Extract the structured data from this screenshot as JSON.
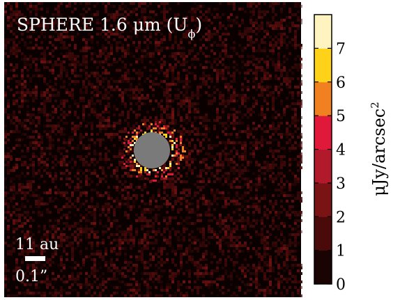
{
  "figure": {
    "title": "SPHERE 1.6 μm (U",
    "title_sub": "ϕ",
    "title_close": ")",
    "scalebar_distance": "11 au",
    "scalebar_angle": "0.1”"
  },
  "colorbar": {
    "label": "μJy/arcsec",
    "label_sup": "2",
    "ticks": [
      "0",
      "1",
      "2",
      "3",
      "4",
      "5",
      "6",
      "7"
    ],
    "colors": [
      "#1a0303",
      "#4a0a0a",
      "#7a1414",
      "#b01a2a",
      "#e0183a",
      "#f08020",
      "#ffd21a",
      "#fff4c0"
    ]
  },
  "image": {
    "background_color": "#0b0000",
    "mask_color": "#7a7a7a",
    "disk_colors": [
      "#fff4c0",
      "#ffd21a",
      "#f08020",
      "#e0183a",
      "#b01a2a",
      "#7a1414"
    ]
  }
}
